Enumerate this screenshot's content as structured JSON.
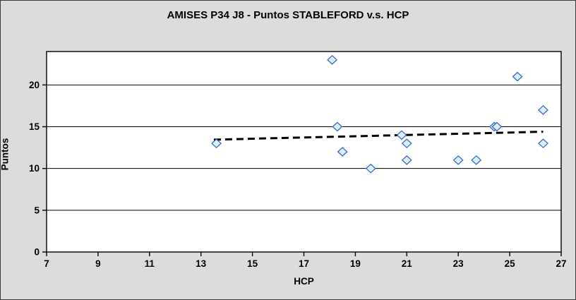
{
  "window": {
    "title": "AMISES P34 J8 - Puntos STABLEFORD v.s. HCP"
  },
  "chart_data": {
    "type": "scatter",
    "title": "AMISES P34 J8 - Puntos STABLEFORD v.s. HCP",
    "xlabel": "HCP",
    "ylabel": "Puntos",
    "xlim": [
      7,
      27
    ],
    "ylim": [
      0,
      24
    ],
    "x_ticks": [
      7,
      9,
      11,
      13,
      15,
      17,
      19,
      21,
      23,
      25,
      27
    ],
    "y_ticks": [
      0,
      5,
      10,
      15,
      20
    ],
    "grid": "horizontal-only",
    "legend": "none",
    "series": [
      {
        "name": "Puntos STABLEFORD vs HCP",
        "marker": "diamond",
        "points": [
          [
            13.6,
            13
          ],
          [
            18.1,
            23
          ],
          [
            18.3,
            15
          ],
          [
            18.5,
            12
          ],
          [
            19.6,
            10
          ],
          [
            20.8,
            14
          ],
          [
            21.0,
            13
          ],
          [
            21.0,
            11
          ],
          [
            23.0,
            11
          ],
          [
            23.7,
            11
          ],
          [
            24.4,
            15
          ],
          [
            24.5,
            15
          ],
          [
            25.3,
            21
          ],
          [
            26.3,
            17
          ],
          [
            26.3,
            13
          ]
        ]
      }
    ],
    "trendline": {
      "style": "dashed",
      "x1": 13.5,
      "y1": 13.45,
      "x2": 26.3,
      "y2": 14.4
    }
  },
  "colors": {
    "background": "#dcdcdc",
    "plot_background": "#ffffff",
    "axis": "#000000",
    "gridline": "#000000",
    "text": "#000000",
    "marker_fill": "#d9f1fb",
    "marker_stroke": "#3a64cc",
    "trendline": "#000000"
  }
}
